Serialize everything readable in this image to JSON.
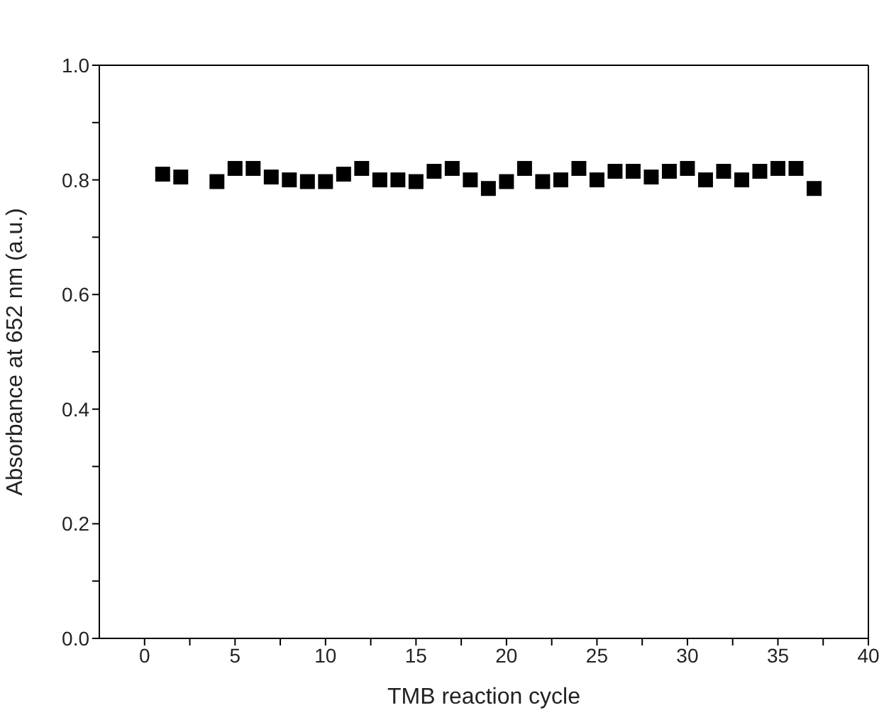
{
  "chart_data": {
    "type": "scatter",
    "xlabel": "TMB reaction cycle",
    "ylabel": "Absorbance at 652 nm (a.u.)",
    "x": [
      1,
      2,
      4,
      5,
      6,
      7,
      8,
      9,
      10,
      11,
      12,
      13,
      14,
      15,
      16,
      17,
      18,
      19,
      20,
      21,
      22,
      23,
      24,
      25,
      26,
      27,
      28,
      29,
      30,
      31,
      32,
      33,
      34,
      35,
      36,
      37
    ],
    "series": [
      {
        "color": "#000000",
        "values": [
          0.81,
          0.805,
          0.797,
          0.82,
          0.82,
          0.805,
          0.8,
          0.797,
          0.797,
          0.81,
          0.82,
          0.8,
          0.8,
          0.797,
          0.815,
          0.82,
          0.8,
          0.785,
          0.797,
          0.82,
          0.797,
          0.8,
          0.82,
          0.8,
          0.815,
          0.815,
          0.805,
          0.815,
          0.82,
          0.8,
          0.815,
          0.8,
          0.815,
          0.82,
          0.82,
          0.785
        ]
      }
    ],
    "marker": "square",
    "xlim": [
      -2.5,
      40
    ],
    "xticks": [
      0,
      {
        "value": 2.5,
        "label": null
      },
      5,
      {
        "value": 7.5,
        "label": null
      },
      10,
      {
        "value": 12.5,
        "label": null
      },
      15,
      {
        "value": 17.5,
        "label": null
      },
      20,
      {
        "value": 22.5,
        "label": null
      },
      25,
      {
        "value": 27.5,
        "label": null
      },
      30,
      {
        "value": 32.5,
        "label": null
      },
      35,
      {
        "value": 37.5,
        "label": null
      },
      40
    ],
    "ylim": [
      0,
      1
    ],
    "yticks": [
      {
        "value": 0,
        "label": "0.0"
      },
      {
        "value": 0.1,
        "label": null
      },
      {
        "value": 0.2,
        "label": "0.2"
      },
      {
        "value": 0.3,
        "label": null
      },
      {
        "value": 0.4,
        "label": "0.4"
      },
      {
        "value": 0.5,
        "label": null
      },
      {
        "value": 0.6,
        "label": "0.6"
      },
      {
        "value": 0.7,
        "label": null
      },
      {
        "value": 0.8,
        "label": "0.8"
      },
      {
        "value": 0.9,
        "label": null
      },
      {
        "value": 1,
        "label": "1.0"
      }
    ]
  }
}
